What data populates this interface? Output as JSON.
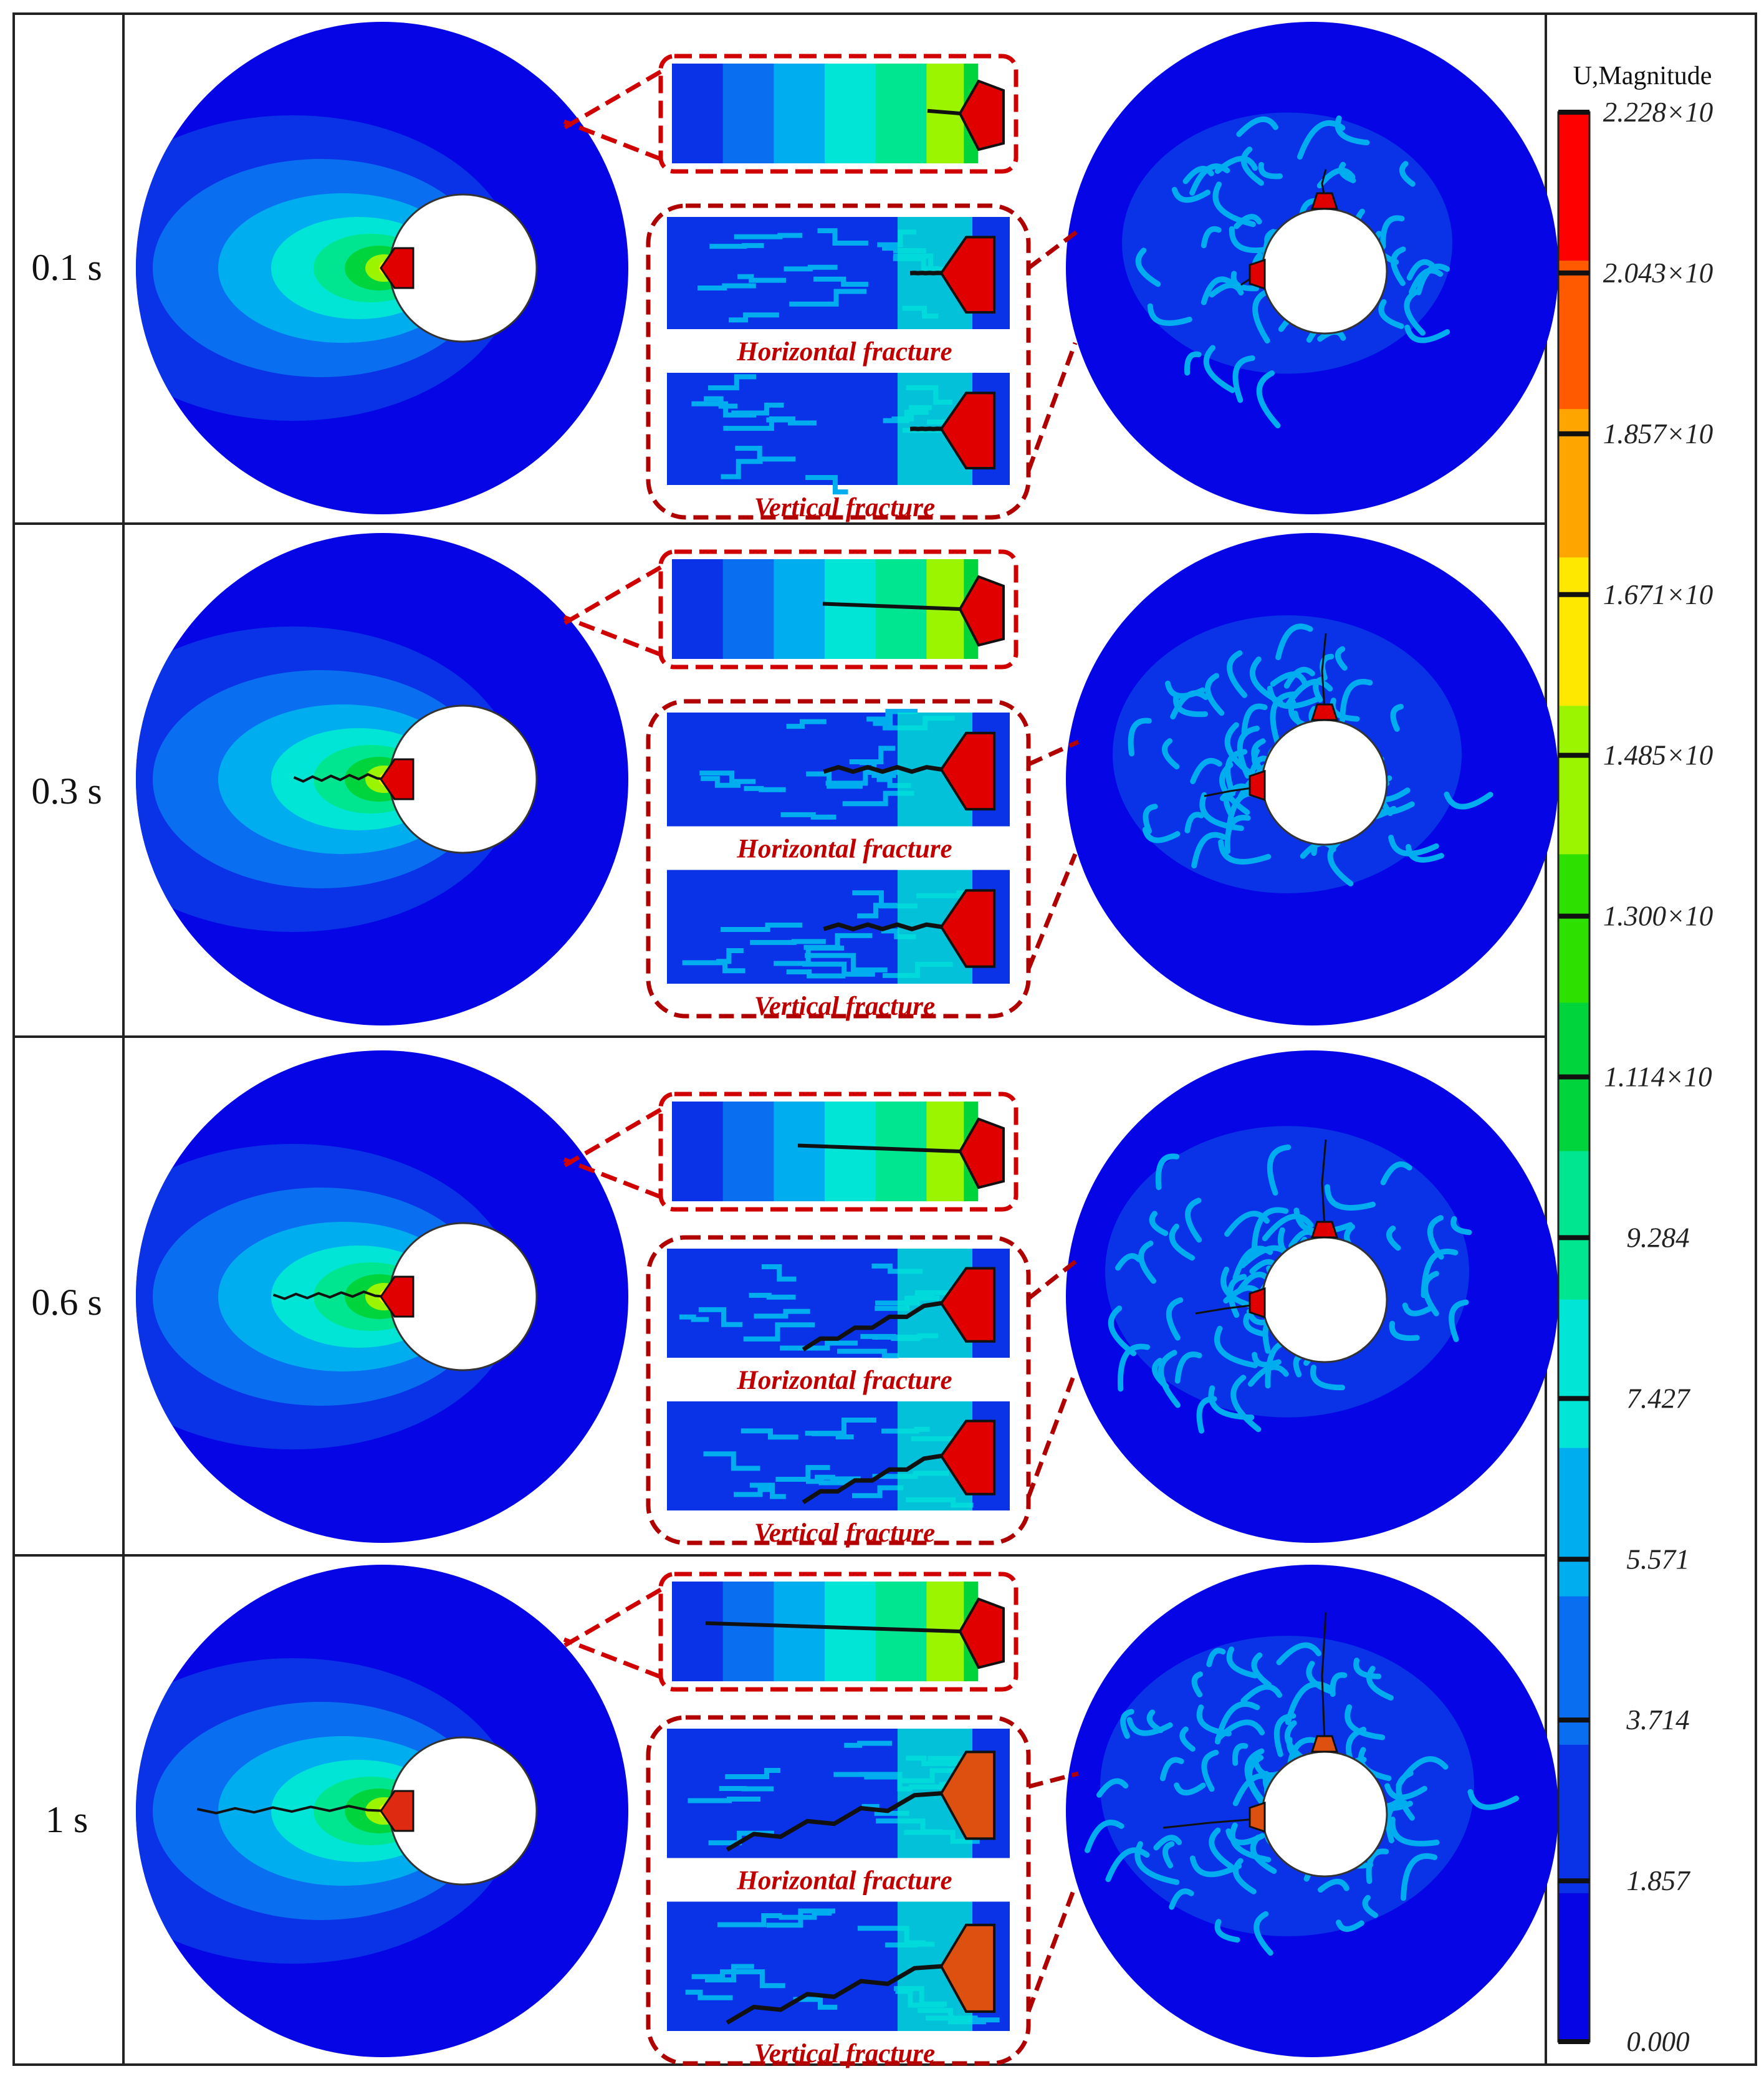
{
  "figure": {
    "rows": [
      {
        "time": "0.1 s",
        "crack_left": 0.03,
        "damage_spread": 0.55
      },
      {
        "time": "0.3 s",
        "crack_left": 0.45,
        "damage_spread": 0.7
      },
      {
        "time": "0.6 s",
        "crack_left": 0.55,
        "damage_spread": 0.82
      },
      {
        "time": "1 s",
        "crack_left": 0.92,
        "damage_spread": 0.9
      }
    ],
    "captions": {
      "horizontal": "Horizontal fracture",
      "vertical": "Vertical fracture"
    }
  },
  "legend": {
    "title": "U,Magnitude",
    "ticks": [
      "2.228×10",
      "2.043×10",
      "1.857×10",
      "1.671×10",
      "1.485×10",
      "1.300×10",
      "1.114×10",
      "9.284",
      "7.427",
      "5.571",
      "3.714",
      "1.857",
      "0.000"
    ],
    "colors": [
      "#ff0000",
      "#ff5a00",
      "#ffa500",
      "#ffe800",
      "#9cf500",
      "#2de000",
      "#00d43c",
      "#00e690",
      "#00e5d6",
      "#00aef0",
      "#0a6ef0",
      "#0a32e6",
      "#0505e6"
    ]
  }
}
